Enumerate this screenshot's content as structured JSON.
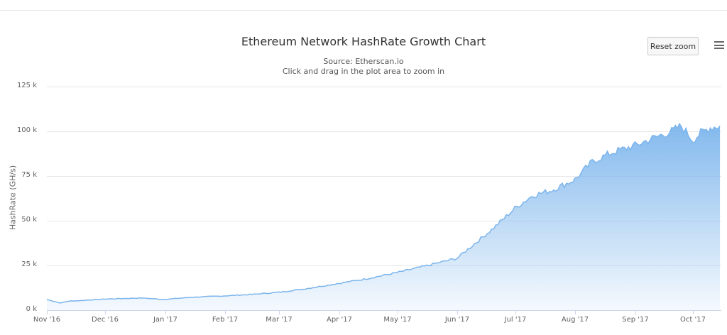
{
  "header": {
    "title": "Ethereum Network HashRate Growth Chart",
    "subtitle": "Source: Etherscan.io",
    "instruction": "Click and drag in the plot area to zoom in",
    "reset_zoom_label": "Reset zoom",
    "menu_icon": "hamburger-menu-icon"
  },
  "colors": {
    "line": "#7cb5ec",
    "fill_top": "#7cb5ec",
    "fill_bottom": "#ffffff",
    "grid": "#e6e6e6"
  },
  "chart_data": {
    "type": "area",
    "title": "Ethereum Network HashRate Growth Chart",
    "subtitle": "Source: Etherscan.io",
    "xlabel": "",
    "ylabel": "HashRate (GH/s)",
    "ylim": [
      0,
      125000
    ],
    "yticks": [
      "0 k",
      "25 k",
      "50 k",
      "75 k",
      "100 k",
      "125 k"
    ],
    "xticks": [
      "Nov '16",
      "Dec '16",
      "Jan '17",
      "Feb '17",
      "Mar '17",
      "Apr '17",
      "May '17",
      "Jun '17",
      "Jul '17",
      "Aug '17",
      "Sep '17",
      "Oct '17"
    ],
    "grid": true,
    "legend": "none",
    "series": [
      {
        "name": "HashRate (GH/s)",
        "x": [
          "2016-11-01",
          "2016-11-08",
          "2016-11-12",
          "2016-11-20",
          "2016-12-01",
          "2016-12-10",
          "2016-12-20",
          "2017-01-01",
          "2017-01-15",
          "2017-02-01",
          "2017-02-15",
          "2017-03-01",
          "2017-03-15",
          "2017-04-01",
          "2017-04-15",
          "2017-05-01",
          "2017-05-15",
          "2017-06-01",
          "2017-06-10",
          "2017-06-20",
          "2017-07-01",
          "2017-07-10",
          "2017-07-20",
          "2017-08-01",
          "2017-08-10",
          "2017-08-20",
          "2017-09-01",
          "2017-09-10",
          "2017-09-20",
          "2017-09-25",
          "2017-10-01",
          "2017-10-05",
          "2017-10-10",
          "2017-10-15"
        ],
        "values": [
          6000,
          4000,
          5000,
          5500,
          6200,
          6500,
          6800,
          6000,
          7200,
          8000,
          8800,
          10000,
          12000,
          15000,
          17500,
          21000,
          24500,
          29000,
          37000,
          46000,
          57000,
          64000,
          67000,
          73000,
          83000,
          88000,
          92000,
          96000,
          100000,
          103000,
          95000,
          99000,
          102000,
          103000
        ]
      }
    ]
  }
}
